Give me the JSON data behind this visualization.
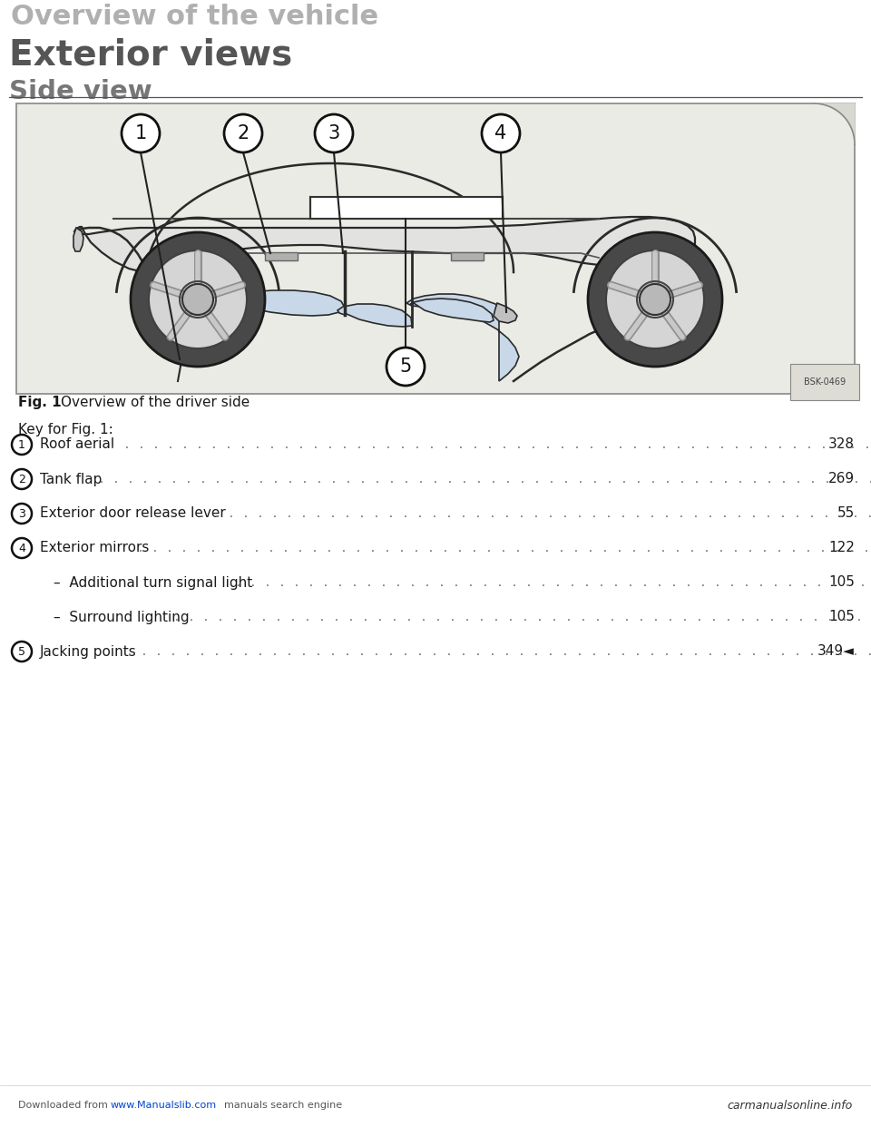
{
  "bg_color": "#f2f0eb",
  "top_title": "Overview of the vehicle",
  "section_title": "Exterior views",
  "subsection_title": "Side view",
  "fig_caption_bold": "Fig. 1",
  "fig_caption_rest": "  Overview of the driver side",
  "key_header": "Key for Fig. 1:",
  "row_items": [
    {
      "num": "1",
      "label": "Roof aerial",
      "page": "328",
      "has_circle": true,
      "indent": 0
    },
    {
      "num": "2",
      "label": "Tank flap",
      "page": "269",
      "has_circle": true,
      "indent": 0
    },
    {
      "num": "3",
      "label": "Exterior door release lever",
      "page": "55",
      "has_circle": true,
      "indent": 0
    },
    {
      "num": "4",
      "label": "Exterior mirrors",
      "page": "122",
      "has_circle": true,
      "indent": 0
    },
    {
      "num": "",
      "label": "–  Additional turn signal light",
      "page": "105",
      "has_circle": false,
      "indent": 35
    },
    {
      "num": "",
      "label": "–  Surround lighting",
      "page": "105",
      "has_circle": false,
      "indent": 35
    },
    {
      "num": "5",
      "label": "Jacking points",
      "page": "349◄",
      "has_circle": true,
      "indent": 0
    }
  ],
  "footer_left1": "Downloaded from ",
  "footer_link": "www.Manualslib.com",
  "footer_left2": "  manuals search engine",
  "footer_right": "carmanualsonline.info",
  "image_code": "BSK-0469",
  "top_title_color": "#b0b0b0",
  "section_color": "#555555",
  "subsection_color": "#777777",
  "text_color": "#1a1a1a",
  "dot_color": "#888888",
  "fig_bg": "#ebebE5",
  "fig_border": "#888888",
  "car_body_fill": "#e2e2e0",
  "car_outline": "#2a2a2a",
  "glass_fill": "#c8d8e8",
  "wheel_dark": "#555555",
  "wheel_rim": "#d8d8d8"
}
